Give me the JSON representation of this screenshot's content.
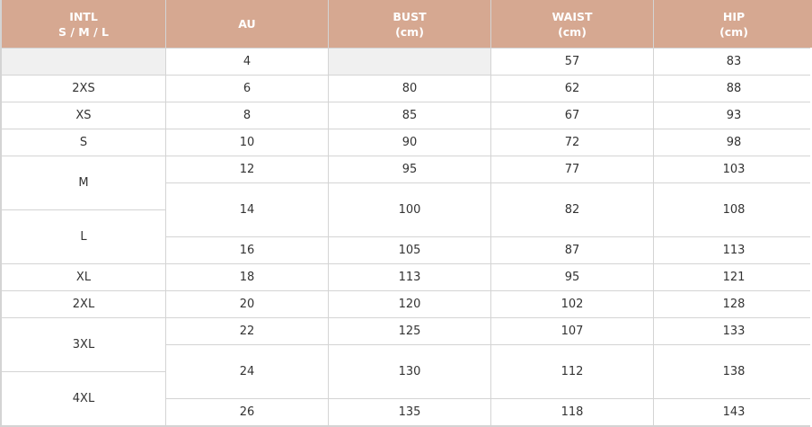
{
  "colors": {
    "header_bg": "#d6a891",
    "header_text": "#ffffff",
    "empty_cell": "#f0f0f0"
  },
  "headers": [
    "INTL\nS / M / L",
    "AU",
    "BUST\n(cm)",
    "WAIST\n(cm)",
    "HIP\n(cm)"
  ],
  "intl": [
    {
      "label": "",
      "span": 1
    },
    {
      "label": "2XS",
      "span": 1
    },
    {
      "label": "XS",
      "span": 1
    },
    {
      "label": "S",
      "span": 1
    },
    {
      "label": "M",
      "span": 2
    },
    {
      "label": "L",
      "span": 2
    },
    {
      "label": "XL",
      "span": 1
    },
    {
      "label": "2XL",
      "span": 1
    },
    {
      "label": "3XL",
      "span": 2
    },
    {
      "label": "4XL",
      "span": 2
    }
  ],
  "rows": [
    {
      "au": "4",
      "bust": "",
      "waist": "57",
      "hip": "83",
      "span": 1
    },
    {
      "au": "6",
      "bust": "80",
      "waist": "62",
      "hip": "88",
      "span": 1
    },
    {
      "au": "8",
      "bust": "85",
      "waist": "67",
      "hip": "93",
      "span": 1
    },
    {
      "au": "10",
      "bust": "90",
      "waist": "72",
      "hip": "98",
      "span": 1
    },
    {
      "au": "12",
      "bust": "95",
      "waist": "77",
      "hip": "103",
      "span": 1
    },
    {
      "au": "14",
      "bust": "100",
      "waist": "82",
      "hip": "108",
      "span": 2
    },
    {
      "au": "16",
      "bust": "105",
      "waist": "87",
      "hip": "113",
      "span": 1
    },
    {
      "au": "18",
      "bust": "113",
      "waist": "95",
      "hip": "121",
      "span": 1
    },
    {
      "au": "20",
      "bust": "120",
      "waist": "102",
      "hip": "128",
      "span": 1
    },
    {
      "au": "22",
      "bust": "125",
      "waist": "107",
      "hip": "133",
      "span": 1
    },
    {
      "au": "24",
      "bust": "130",
      "waist": "112",
      "hip": "138",
      "span": 2
    },
    {
      "au": "26",
      "bust": "135",
      "waist": "118",
      "hip": "143",
      "span": 1
    }
  ]
}
